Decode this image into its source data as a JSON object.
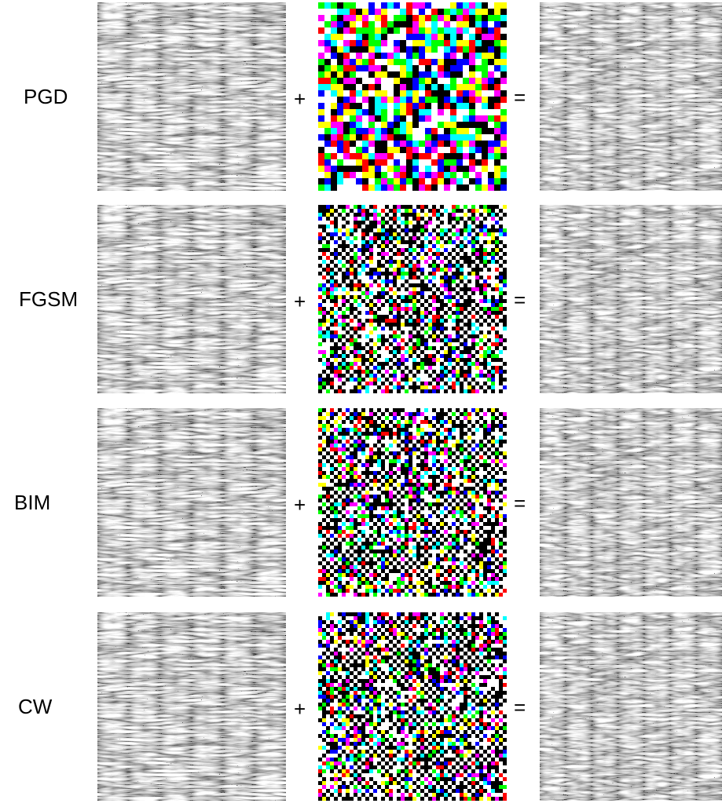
{
  "rows": [
    {
      "label": "PGD",
      "plus": "+",
      "equals": "="
    },
    {
      "label": "FGSM",
      "plus": "+",
      "equals": "="
    },
    {
      "label": "BIM",
      "plus": "+",
      "equals": "="
    },
    {
      "label": "CW",
      "plus": "+",
      "equals": "="
    }
  ]
}
